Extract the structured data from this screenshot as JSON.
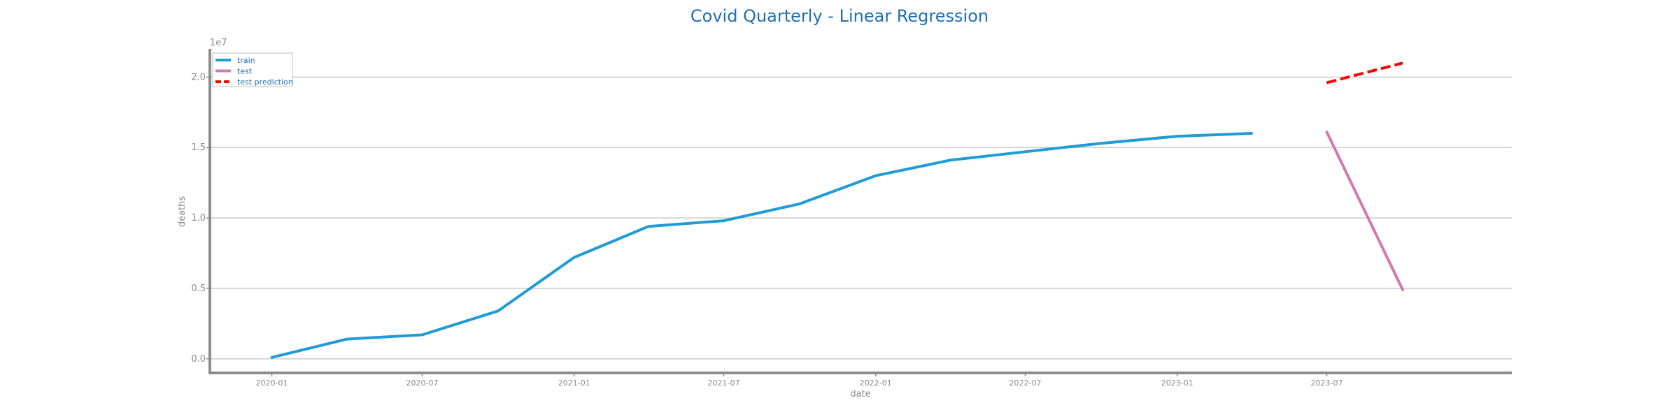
{
  "chart_data": {
    "type": "line",
    "title": "Covid Quarterly - Linear Regression",
    "xlabel": "date",
    "ylabel": "deaths",
    "y_scale_label": "1e7",
    "ylim": [
      -0.1,
      2.2
    ],
    "xlim": [
      "2019-10-18",
      "2024-02-10"
    ],
    "grid": "horizontal",
    "legend_position": "top-left",
    "x_ticks": [
      "2020-01",
      "2020-07",
      "2021-01",
      "2021-07",
      "2022-01",
      "2022-07",
      "2023-01",
      "2023-07"
    ],
    "y_ticks": [
      "0.0",
      "0.5",
      "1.0",
      "1.5",
      "2.0"
    ],
    "series": [
      {
        "name": "train",
        "color": "#1f9bd6",
        "style": "solid",
        "x": [
          "2020-01-01",
          "2020-04-01",
          "2020-07-01",
          "2020-10-01",
          "2021-01-01",
          "2021-04-01",
          "2021-07-01",
          "2021-10-01",
          "2022-01-01",
          "2022-04-01",
          "2022-07-01",
          "2022-10-01",
          "2023-01-01",
          "2023-04-01"
        ],
        "values": [
          0.01,
          0.14,
          0.17,
          0.34,
          0.72,
          0.94,
          0.98,
          1.1,
          1.3,
          1.41,
          1.47,
          1.53,
          1.58,
          1.6
        ]
      },
      {
        "name": "test",
        "color": "#d478b0",
        "style": "solid",
        "x": [
          "2023-07-01",
          "2023-10-01"
        ],
        "values": [
          1.61,
          0.49
        ]
      },
      {
        "name": "test prediction",
        "color": "#ff0000",
        "style": "dashed",
        "x": [
          "2023-07-01",
          "2023-10-01"
        ],
        "values": [
          1.96,
          2.1
        ]
      }
    ]
  }
}
